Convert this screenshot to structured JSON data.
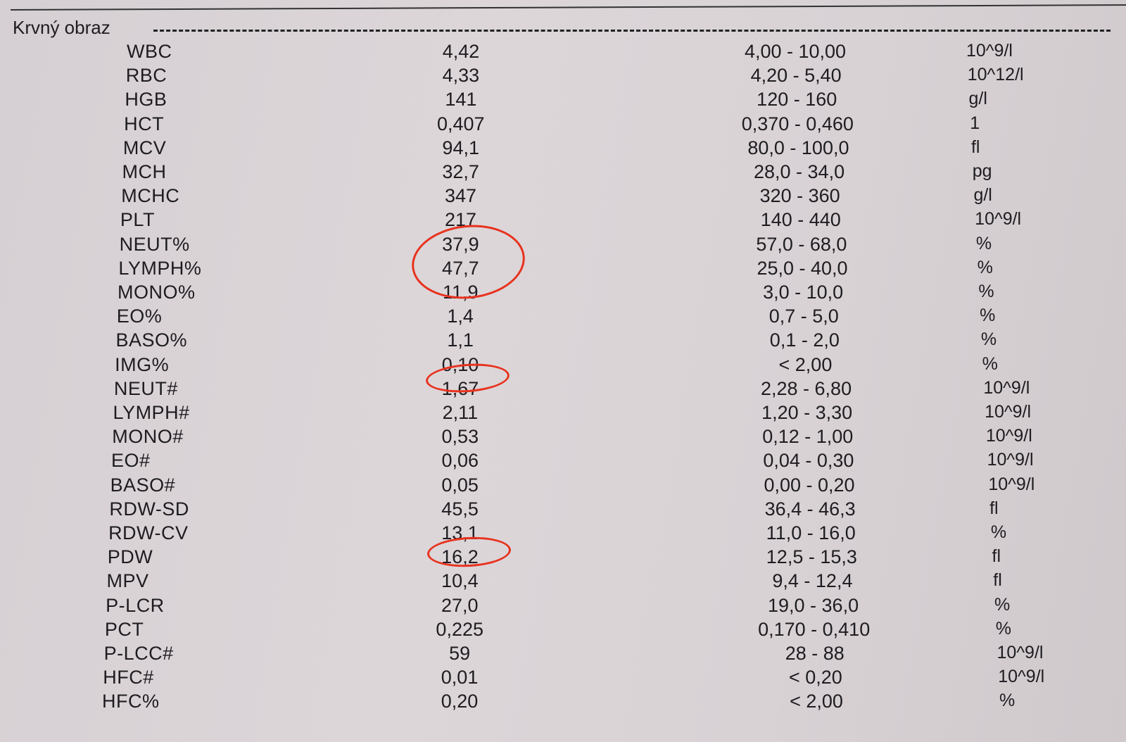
{
  "section": "Krvný obraz",
  "highlight_color": "#e8321e",
  "rows": [
    {
      "name": "WBC",
      "value": "4,42",
      "ref": "4,00 - 10,00",
      "unit": "10^9/l"
    },
    {
      "name": "RBC",
      "value": "4,33",
      "ref": "4,20 - 5,40",
      "unit": "10^12/l"
    },
    {
      "name": "HGB",
      "value": "141",
      "ref": "120 - 160",
      "unit": "g/l"
    },
    {
      "name": "HCT",
      "value": "0,407",
      "ref": "0,370 - 0,460",
      "unit": "1"
    },
    {
      "name": "MCV",
      "value": "94,1",
      "ref": "80,0 - 100,0",
      "unit": "fl"
    },
    {
      "name": "MCH",
      "value": "32,7",
      "ref": "28,0 - 34,0",
      "unit": "pg"
    },
    {
      "name": "MCHC",
      "value": "347",
      "ref": "320 - 360",
      "unit": "g/l"
    },
    {
      "name": "PLT",
      "value": "217",
      "ref": "140 - 440",
      "unit": "10^9/l"
    },
    {
      "name": "NEUT%",
      "value": "37,9",
      "ref": "57,0 - 68,0",
      "unit": "%",
      "circled": true
    },
    {
      "name": "LYMPH%",
      "value": "47,7",
      "ref": "25,0 - 40,0",
      "unit": "%",
      "circled": true
    },
    {
      "name": "MONO%",
      "value": "11,9",
      "ref": "3,0 - 10,0",
      "unit": "%",
      "circled": true
    },
    {
      "name": "EO%",
      "value": "1,4",
      "ref": "0,7 - 5,0",
      "unit": "%"
    },
    {
      "name": "BASO%",
      "value": "1,1",
      "ref": "0,1 - 2,0",
      "unit": "%"
    },
    {
      "name": "IMG%",
      "value": "0,10",
      "ref": "< 2,00",
      "unit": "%"
    },
    {
      "name": "NEUT#",
      "value": "1,67",
      "ref": "2,28 - 6,80",
      "unit": "10^9/l",
      "circled": true
    },
    {
      "name": "LYMPH#",
      "value": "2,11",
      "ref": "1,20 - 3,30",
      "unit": "10^9/l"
    },
    {
      "name": "MONO#",
      "value": "0,53",
      "ref": "0,12 - 1,00",
      "unit": "10^9/l"
    },
    {
      "name": "EO#",
      "value": "0,06",
      "ref": "0,04 - 0,30",
      "unit": "10^9/l"
    },
    {
      "name": "BASO#",
      "value": "0,05",
      "ref": "0,00 - 0,20",
      "unit": "10^9/l"
    },
    {
      "name": "RDW-SD",
      "value": "45,5",
      "ref": "36,4 - 46,3",
      "unit": "fl"
    },
    {
      "name": "RDW-CV",
      "value": "13,1",
      "ref": "11,0 - 16,0",
      "unit": "%"
    },
    {
      "name": "PDW",
      "value": "16,2",
      "ref": "12,5 - 15,3",
      "unit": "fl",
      "circled": true
    },
    {
      "name": "MPV",
      "value": "10,4",
      "ref": "9,4 - 12,4",
      "unit": "fl"
    },
    {
      "name": "P-LCR",
      "value": "27,0",
      "ref": "19,0 - 36,0",
      "unit": "%"
    },
    {
      "name": "PCT",
      "value": "0,225",
      "ref": "0,170 - 0,410",
      "unit": "%"
    },
    {
      "name": "P-LCC#",
      "value": "59",
      "ref": "28 - 88",
      "unit": "10^9/l"
    },
    {
      "name": "HFC#",
      "value": "0,01",
      "ref": "< 0,20",
      "unit": "10^9/l"
    },
    {
      "name": "HFC%",
      "value": "0,20",
      "ref": "< 2,00",
      "unit": "%"
    }
  ]
}
